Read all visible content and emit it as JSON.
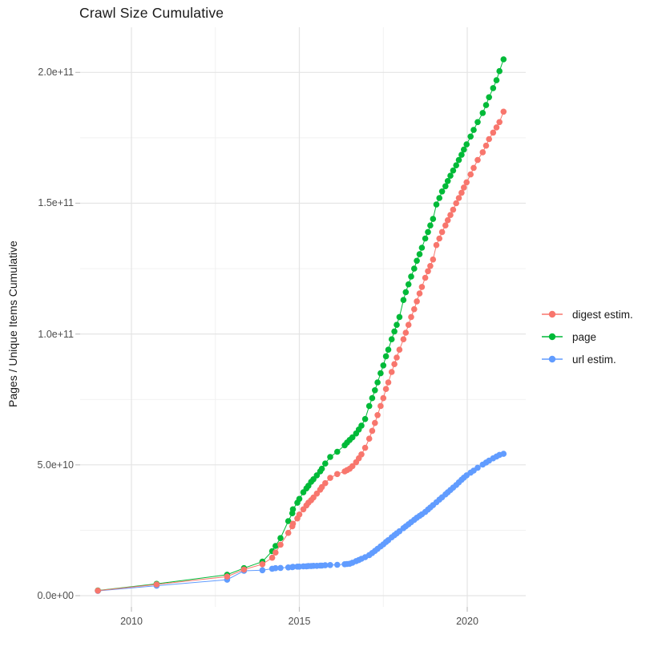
{
  "title": "Crawl Size Cumulative",
  "y_axis": {
    "label": "Pages / Unique Items Cumulative",
    "ticks": [
      {
        "label": "0.0e+00",
        "value": 0
      },
      {
        "label": "5.0e+10",
        "value": 50
      },
      {
        "label": "1.0e+11",
        "value": 100
      },
      {
        "label": "1.5e+11",
        "value": 150
      },
      {
        "label": "2.0e+11",
        "value": 200
      }
    ],
    "minor_values": [
      25,
      75,
      125,
      175
    ]
  },
  "x_axis": {
    "ticks": [
      {
        "label": "2010",
        "value": 2010
      },
      {
        "label": "2015",
        "value": 2015
      },
      {
        "label": "2020",
        "value": 2020
      }
    ],
    "minor_values": [
      2012.5,
      2017.5
    ]
  },
  "legend": {
    "items": [
      {
        "id": "digest-estim",
        "label": "digest estim.",
        "color": "#F8766D"
      },
      {
        "id": "page",
        "label": "page",
        "color": "#00BA38"
      },
      {
        "id": "url-estim",
        "label": "url estim.",
        "color": "#619CFF"
      }
    ]
  },
  "colors": {
    "background": "#ffffff",
    "grid_major": "#e4e4e4",
    "grid_minor": "#f1f1f1",
    "tick_mark": "#c2c2c2",
    "tick_text": "#4d4d4d",
    "title_text": "#191919",
    "digest_estim": "#F8766D",
    "page": "#00BA38",
    "url_estim": "#619CFF"
  },
  "chart_data": {
    "type": "scatter",
    "title": "Crawl Size Cumulative",
    "xlabel": "",
    "ylabel": "Pages / Unique Items Cumulative",
    "value_unit": "billions of pages (1e9); y axis rendered in scientific notation",
    "xlim": [
      2008.5,
      2021.7
    ],
    "ylim": [
      0,
      212
    ],
    "grid": true,
    "legend_position": "right",
    "x": [
      2009.0,
      2010.75,
      2012.85,
      2013.35,
      2013.9,
      2014.19,
      2014.29,
      2014.44,
      2014.67,
      2014.79,
      2014.81,
      2014.94,
      2015.0,
      2015.12,
      2015.21,
      2015.27,
      2015.35,
      2015.42,
      2015.52,
      2015.62,
      2015.67,
      2015.77,
      2015.92,
      2016.13,
      2016.35,
      2016.42,
      2016.5,
      2016.58,
      2016.69,
      2016.77,
      2016.85,
      2016.96,
      2017.08,
      2017.17,
      2017.25,
      2017.33,
      2017.42,
      2017.5,
      2017.58,
      2017.65,
      2017.75,
      2017.83,
      2017.9,
      2017.98,
      2018.1,
      2018.17,
      2018.25,
      2018.33,
      2018.42,
      2018.5,
      2018.58,
      2018.65,
      2018.75,
      2018.83,
      2018.9,
      2018.98,
      2019.08,
      2019.17,
      2019.25,
      2019.35,
      2019.42,
      2019.5,
      2019.58,
      2019.67,
      2019.75,
      2019.83,
      2019.9,
      2019.98,
      2020.1,
      2020.19,
      2020.31,
      2020.46,
      2020.56,
      2020.65,
      2020.77,
      2020.87,
      2020.96,
      2021.08
    ],
    "series": [
      {
        "name": "digest estim.",
        "id": "digest-estim",
        "color": "#F8766D",
        "values": [
          1.9,
          4.3,
          7.3,
          10,
          12,
          14.5,
          16.5,
          19.5,
          24,
          26.5,
          27.5,
          29.5,
          31,
          33,
          34.5,
          35.5,
          36.5,
          37.5,
          39,
          40.5,
          41.5,
          43,
          45,
          46.5,
          47.5,
          48,
          48.5,
          49.5,
          51,
          52.5,
          54,
          56.5,
          60,
          63,
          66,
          69,
          72.5,
          75.5,
          79,
          81.5,
          85.5,
          88.5,
          91,
          94,
          98,
          100.5,
          103.5,
          106.5,
          109.5,
          112.5,
          115.5,
          118,
          121.5,
          124,
          126,
          128.5,
          134,
          136.5,
          139,
          141.5,
          143.5,
          145.5,
          147.5,
          150,
          152,
          154,
          156,
          158,
          161,
          163.5,
          166.5,
          169.5,
          172,
          174.5,
          177,
          179,
          181,
          185
        ]
      },
      {
        "name": "page",
        "id": "page",
        "color": "#00BA38",
        "values": [
          2,
          4.5,
          8,
          10.5,
          13,
          17,
          19,
          22,
          28.5,
          31.5,
          33,
          35.5,
          37,
          39.5,
          41,
          42,
          43.5,
          44.5,
          46,
          47.5,
          48.5,
          50.5,
          53,
          55,
          57.5,
          58.5,
          59.5,
          60.5,
          62,
          63.5,
          65,
          67.5,
          72.5,
          75.5,
          78.5,
          81.5,
          85,
          88,
          91.5,
          94,
          98,
          101,
          103.5,
          106.5,
          113,
          116,
          119,
          122,
          125,
          128,
          130.5,
          133,
          136.5,
          139,
          141.5,
          144,
          149.5,
          152,
          154.5,
          156.5,
          158.5,
          160.5,
          162.5,
          164.5,
          166.5,
          168.5,
          170.5,
          172.5,
          175.5,
          178,
          181,
          184.5,
          187.5,
          190.5,
          194,
          197,
          200.5,
          205
        ]
      },
      {
        "name": "url estim.",
        "id": "url-estim",
        "color": "#619CFF",
        "values": [
          1.8,
          3.8,
          6.1,
          9.5,
          9.7,
          10.3,
          10.5,
          10.6,
          10.8,
          10.9,
          11,
          11.1,
          11.1,
          11.2,
          11.2,
          11.3,
          11.3,
          11.4,
          11.4,
          11.5,
          11.5,
          11.6,
          11.7,
          11.8,
          12,
          12.1,
          12.2,
          12.6,
          13.2,
          13.6,
          14.1,
          14.7,
          15.5,
          16.3,
          17.1,
          17.9,
          18.8,
          19.6,
          20.5,
          21.2,
          22.3,
          23.1,
          23.8,
          24.6,
          25.8,
          26.5,
          27.3,
          28.1,
          29,
          29.8,
          30.5,
          31.1,
          32,
          32.9,
          33.7,
          34.6,
          35.7,
          36.7,
          37.6,
          38.7,
          39.5,
          40.4,
          41.3,
          42.3,
          43.3,
          44.3,
          45.1,
          46,
          47,
          47.8,
          48.9,
          50.1,
          50.9,
          51.6,
          52.5,
          53.2,
          53.8,
          54.2
        ]
      }
    ]
  }
}
